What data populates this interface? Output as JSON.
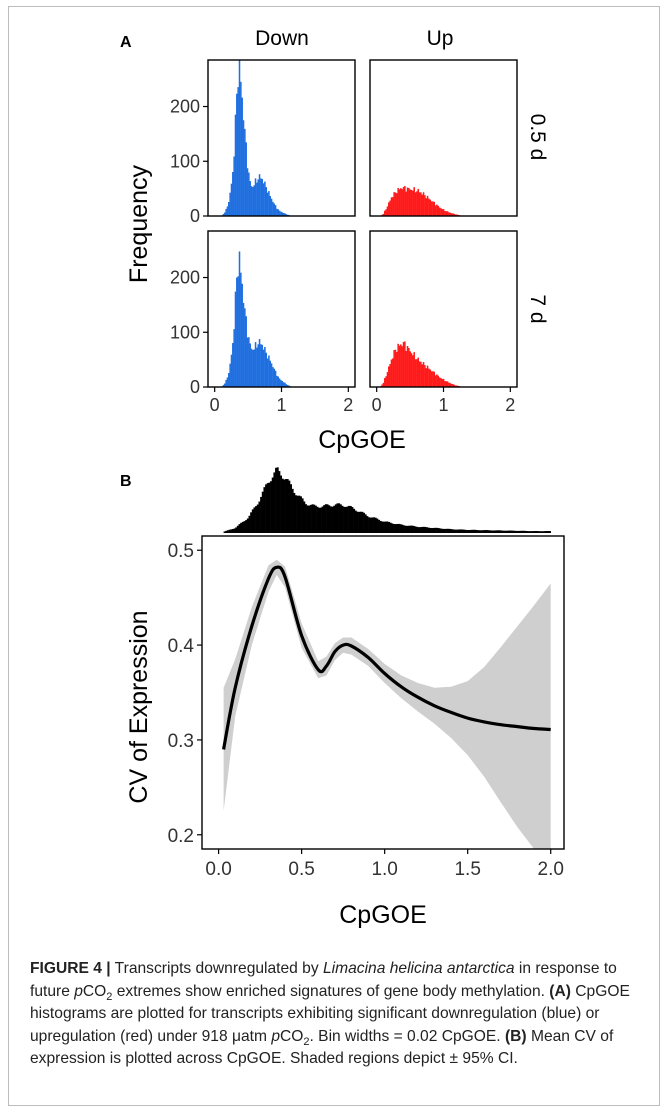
{
  "chart_data": [
    {
      "panel": "A",
      "type": "bar",
      "facet_columns": [
        "Down",
        "Up"
      ],
      "facet_rows": [
        "0.5 d",
        "7 d"
      ],
      "xlabel": "CpGOE",
      "ylabel": "Frequency",
      "xlim": [
        -0.1,
        2.1
      ],
      "ylim": [
        0,
        285
      ],
      "x_ticks": [
        "0",
        "1",
        "2"
      ],
      "y_ticks": [
        "0",
        "100",
        "200"
      ],
      "bin_width": 0.02,
      "colors": {
        "Down": "#1f6fe0",
        "Up": "#ff1a1a"
      },
      "facets": [
        {
          "row": "0.5 d",
          "col": "Down",
          "shape": [
            [
              0.1,
              0
            ],
            [
              0.16,
              8
            ],
            [
              0.22,
              30
            ],
            [
              0.28,
              90
            ],
            [
              0.31,
              170
            ],
            [
              0.34,
              250
            ],
            [
              0.37,
              280
            ],
            [
              0.4,
              230
            ],
            [
              0.44,
              170
            ],
            [
              0.48,
              110
            ],
            [
              0.52,
              65
            ],
            [
              0.56,
              52
            ],
            [
              0.6,
              60
            ],
            [
              0.64,
              68
            ],
            [
              0.68,
              72
            ],
            [
              0.72,
              66
            ],
            [
              0.78,
              50
            ],
            [
              0.84,
              34
            ],
            [
              0.9,
              20
            ],
            [
              0.96,
              10
            ],
            [
              1.04,
              5
            ],
            [
              1.1,
              2
            ],
            [
              1.16,
              0
            ]
          ]
        },
        {
          "row": "0.5 d",
          "col": "Up",
          "shape": [
            [
              0.05,
              0
            ],
            [
              0.1,
              4
            ],
            [
              0.16,
              18
            ],
            [
              0.22,
              34
            ],
            [
              0.3,
              46
            ],
            [
              0.38,
              52
            ],
            [
              0.46,
              50
            ],
            [
              0.54,
              48
            ],
            [
              0.62,
              46
            ],
            [
              0.7,
              40
            ],
            [
              0.78,
              32
            ],
            [
              0.86,
              24
            ],
            [
              0.94,
              16
            ],
            [
              1.02,
              10
            ],
            [
              1.1,
              6
            ],
            [
              1.18,
              3
            ],
            [
              1.26,
              1
            ],
            [
              1.34,
              0
            ]
          ]
        },
        {
          "row": "7 d",
          "col": "Down",
          "shape": [
            [
              0.1,
              0
            ],
            [
              0.16,
              8
            ],
            [
              0.22,
              30
            ],
            [
              0.28,
              90
            ],
            [
              0.31,
              160
            ],
            [
              0.34,
              220
            ],
            [
              0.37,
              230
            ],
            [
              0.4,
              200
            ],
            [
              0.44,
              150
            ],
            [
              0.48,
              110
            ],
            [
              0.52,
              80
            ],
            [
              0.56,
              68
            ],
            [
              0.6,
              72
            ],
            [
              0.64,
              80
            ],
            [
              0.68,
              82
            ],
            [
              0.72,
              75
            ],
            [
              0.78,
              60
            ],
            [
              0.84,
              46
            ],
            [
              0.9,
              30
            ],
            [
              0.96,
              16
            ],
            [
              1.04,
              8
            ],
            [
              1.1,
              3
            ],
            [
              1.16,
              0
            ]
          ]
        },
        {
          "row": "7 d",
          "col": "Up",
          "shape": [
            [
              0.05,
              0
            ],
            [
              0.1,
              8
            ],
            [
              0.16,
              28
            ],
            [
              0.22,
              50
            ],
            [
              0.28,
              68
            ],
            [
              0.34,
              76
            ],
            [
              0.4,
              80
            ],
            [
              0.46,
              72
            ],
            [
              0.54,
              60
            ],
            [
              0.62,
              50
            ],
            [
              0.7,
              42
            ],
            [
              0.78,
              34
            ],
            [
              0.86,
              26
            ],
            [
              0.94,
              18
            ],
            [
              1.02,
              12
            ],
            [
              1.1,
              7
            ],
            [
              1.18,
              3
            ],
            [
              1.26,
              1
            ],
            [
              1.32,
              0
            ]
          ]
        }
      ]
    },
    {
      "panel": "B",
      "type": "line",
      "xlabel": "CpGOE",
      "ylabel": "CV of Expression",
      "xlim": [
        -0.1,
        2.08
      ],
      "ylim": [
        0.185,
        0.515
      ],
      "x_ticks": [
        "0.0",
        "0.5",
        "1.0",
        "1.5",
        "2.0"
      ],
      "y_ticks": [
        "0.2",
        "0.3",
        "0.4",
        "0.5"
      ],
      "colors": {
        "line": "#000000",
        "ci": "#cfcfcf"
      },
      "x": [
        0.03,
        0.1,
        0.2,
        0.3,
        0.35,
        0.4,
        0.5,
        0.6,
        0.65,
        0.7,
        0.75,
        0.8,
        0.9,
        1.0,
        1.1,
        1.2,
        1.3,
        1.4,
        1.5,
        1.6,
        1.7,
        1.8,
        1.9,
        2.0
      ],
      "y": [
        0.29,
        0.355,
        0.42,
        0.47,
        0.482,
        0.472,
        0.41,
        0.374,
        0.378,
        0.393,
        0.4,
        0.399,
        0.387,
        0.37,
        0.356,
        0.345,
        0.336,
        0.329,
        0.323,
        0.319,
        0.316,
        0.314,
        0.312,
        0.311
      ],
      "ci_upper": [
        0.355,
        0.385,
        0.44,
        0.484,
        0.49,
        0.483,
        0.423,
        0.383,
        0.388,
        0.402,
        0.408,
        0.408,
        0.396,
        0.38,
        0.368,
        0.36,
        0.355,
        0.356,
        0.362,
        0.377,
        0.398,
        0.42,
        0.442,
        0.465
      ],
      "ci_lower": [
        0.225,
        0.325,
        0.4,
        0.456,
        0.474,
        0.461,
        0.397,
        0.365,
        0.368,
        0.384,
        0.392,
        0.39,
        0.378,
        0.36,
        0.344,
        0.33,
        0.317,
        0.302,
        0.284,
        0.261,
        0.234,
        0.208,
        0.185,
        0.17
      ],
      "marginal_histogram": {
        "color": "#000000",
        "shape": [
          [
            0.03,
            0.02
          ],
          [
            0.1,
            0.08
          ],
          [
            0.18,
            0.25
          ],
          [
            0.24,
            0.5
          ],
          [
            0.3,
            0.82
          ],
          [
            0.35,
            1.0
          ],
          [
            0.4,
            0.88
          ],
          [
            0.46,
            0.65
          ],
          [
            0.52,
            0.48
          ],
          [
            0.58,
            0.42
          ],
          [
            0.64,
            0.43
          ],
          [
            0.7,
            0.45
          ],
          [
            0.76,
            0.44
          ],
          [
            0.82,
            0.38
          ],
          [
            0.9,
            0.27
          ],
          [
            1.0,
            0.18
          ],
          [
            1.1,
            0.13
          ],
          [
            1.2,
            0.1
          ],
          [
            1.3,
            0.08
          ],
          [
            1.4,
            0.06
          ],
          [
            1.5,
            0.05
          ],
          [
            1.6,
            0.045
          ],
          [
            1.7,
            0.04
          ],
          [
            1.8,
            0.035
          ],
          [
            1.9,
            0.03
          ],
          [
            2.0,
            0.03
          ]
        ]
      }
    }
  ],
  "panel_labels": {
    "A": "A",
    "B": "B"
  },
  "caption": {
    "figure_label": "FIGURE 4 |",
    "text_1": " Transcripts downregulated by ",
    "species": "Limacina helicina antarctica",
    "text_2": " in response to future ",
    "p": "p",
    "co2_main": "CO",
    "co2_sub": "2",
    "text_3": " extremes show enriched signatures of gene body methylation. ",
    "label_a": "(A)",
    "text_4": " CpGOE histograms are plotted for transcripts exhibiting significant downregulation (blue) or upregulation (red) under 918 μatm ",
    "text_5": ". Bin widths = 0.02 CpGOE. ",
    "label_b": "(B)",
    "text_6": " Mean CV of expression is plotted across CpGOE. Shaded regions depict ± 95% CI."
  }
}
